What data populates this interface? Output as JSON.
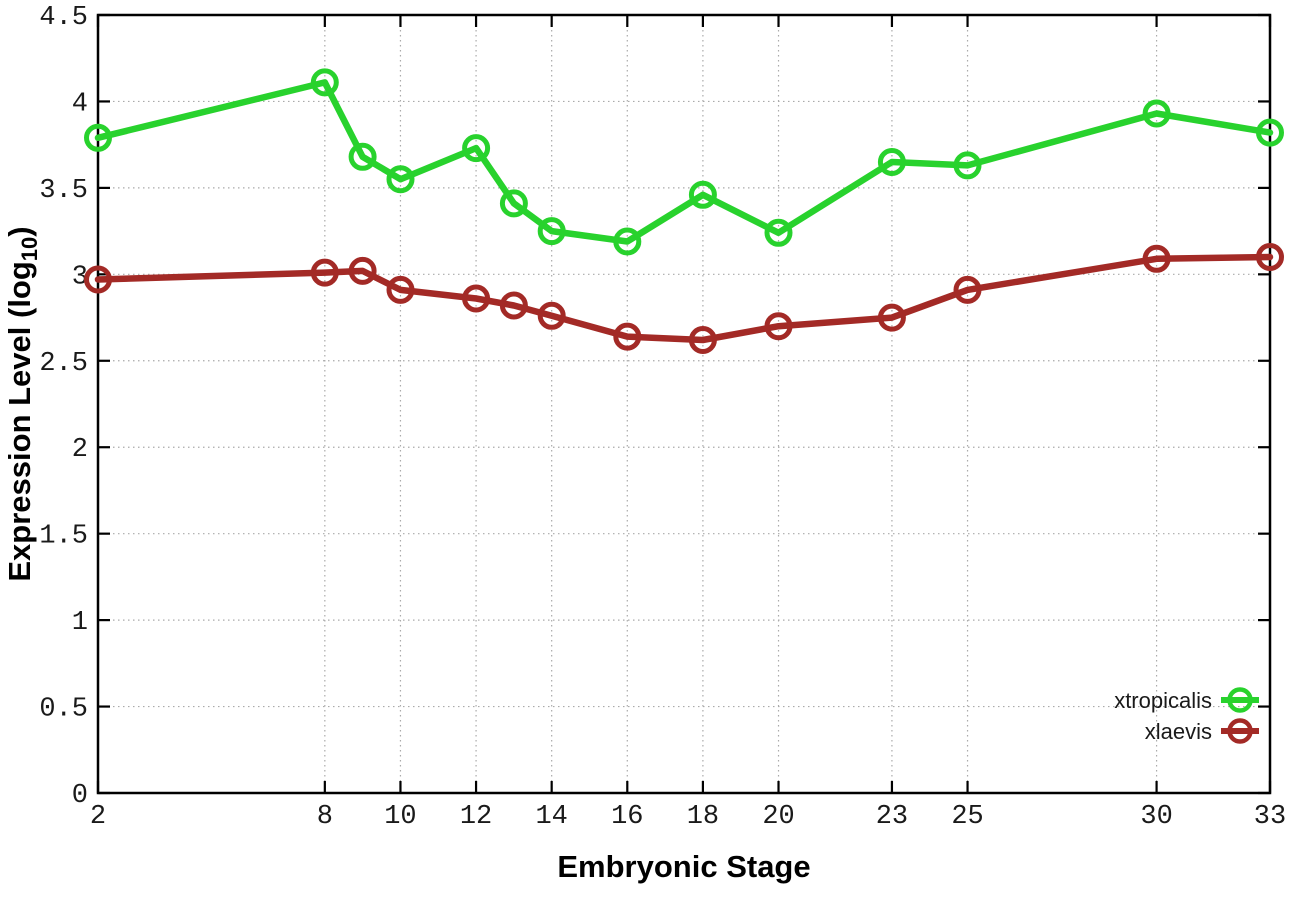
{
  "chart_data": {
    "type": "line",
    "title": "",
    "xlabel": "Embryonic Stage",
    "ylabel": {
      "text": "Expression Level (log",
      "subscript": "10",
      "suffix": ")"
    },
    "xlim": [
      2,
      33
    ],
    "ylim": [
      0,
      4.5
    ],
    "grid": true,
    "x": [
      2,
      8,
      9,
      10,
      12,
      13,
      14,
      16,
      18,
      20,
      23,
      25,
      30,
      33
    ],
    "xticks": {
      "values": [
        2,
        8,
        10,
        12,
        14,
        16,
        18,
        20,
        23,
        25,
        30,
        33
      ],
      "labels": [
        "2",
        "8",
        "10",
        "12",
        "14",
        "16",
        "18",
        "20",
        "23",
        "25",
        "30",
        "33"
      ]
    },
    "yticks": {
      "values": [
        0,
        0.5,
        1,
        1.5,
        2,
        2.5,
        3,
        3.5,
        4,
        4.5
      ],
      "labels": [
        "0",
        "0.5",
        "1",
        "1.5",
        "2",
        "2.5",
        "3",
        "3.5",
        "4",
        "4.5"
      ]
    },
    "legend": {
      "position": "bottom-right",
      "entries": [
        "xtropicalis",
        "xlaevis"
      ]
    },
    "series": [
      {
        "name": "xtropicalis",
        "color": "#28d22d",
        "marker": "open-circle",
        "values": [
          3.79,
          4.11,
          3.68,
          3.55,
          3.73,
          3.41,
          3.25,
          3.19,
          3.46,
          3.24,
          3.65,
          3.63,
          3.93,
          3.82
        ]
      },
      {
        "name": "xlaevis",
        "color": "#a32a26",
        "marker": "open-circle",
        "values": [
          2.97,
          3.01,
          3.02,
          2.91,
          2.86,
          2.82,
          2.76,
          2.64,
          2.62,
          2.7,
          2.75,
          2.91,
          3.09,
          3.1
        ]
      }
    ],
    "colors": {
      "axis": "#000000",
      "grid": "#aaaaaa",
      "text": "#1a1a1a",
      "background": "#ffffff"
    }
  }
}
